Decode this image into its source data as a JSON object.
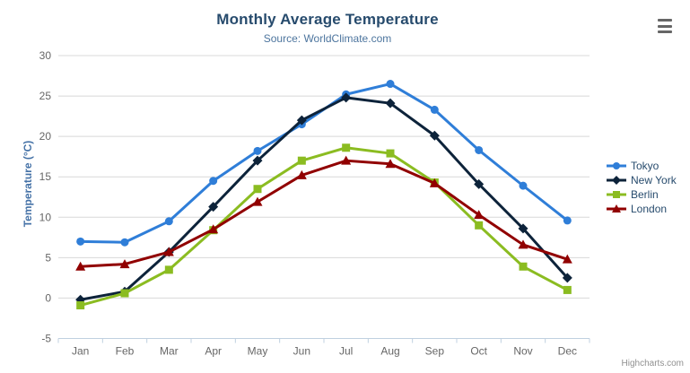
{
  "chart": {
    "credits_label": "Highcharts.com"
  },
  "chart_data": {
    "type": "line",
    "title": "Monthly Average Temperature",
    "subtitle": "Source: WorldClimate.com",
    "xlabel": "",
    "ylabel": "Temperature (°C)",
    "categories": [
      "Jan",
      "Feb",
      "Mar",
      "Apr",
      "May",
      "Jun",
      "Jul",
      "Aug",
      "Sep",
      "Oct",
      "Nov",
      "Dec"
    ],
    "ylim": [
      -5,
      30
    ],
    "yticks": [
      -5,
      0,
      5,
      10,
      15,
      20,
      25,
      30
    ],
    "grid": true,
    "legend_position": "right",
    "series": [
      {
        "name": "Tokyo",
        "color": "#2f7ed8",
        "marker": "circle",
        "values": [
          7.0,
          6.9,
          9.5,
          14.5,
          18.2,
          21.5,
          25.2,
          26.5,
          23.3,
          18.3,
          13.9,
          9.6
        ]
      },
      {
        "name": "New York",
        "color": "#0d233a",
        "marker": "diamond",
        "values": [
          -0.2,
          0.8,
          5.7,
          11.3,
          17.0,
          22.0,
          24.8,
          24.1,
          20.1,
          14.1,
          8.6,
          2.5
        ]
      },
      {
        "name": "Berlin",
        "color": "#8bbc21",
        "marker": "square",
        "values": [
          -0.9,
          0.6,
          3.5,
          8.4,
          13.5,
          17.0,
          18.6,
          17.9,
          14.3,
          9.0,
          3.9,
          1.0
        ]
      },
      {
        "name": "London",
        "color": "#910000",
        "marker": "triangle-up",
        "values": [
          3.9,
          4.2,
          5.7,
          8.5,
          11.9,
          15.2,
          17.0,
          16.6,
          14.2,
          10.3,
          6.6,
          4.8
        ]
      }
    ]
  },
  "colors": {
    "title": "#274b6d",
    "subtitle": "#4d759e",
    "axis_label": "#666666",
    "y_axis_title": "#4572a7",
    "gridline": "#d8d8d8",
    "axis_line": "#c0d0e0",
    "legend_text": "#274b6d",
    "credits": "#909090",
    "menu_icon": "#666666"
  }
}
